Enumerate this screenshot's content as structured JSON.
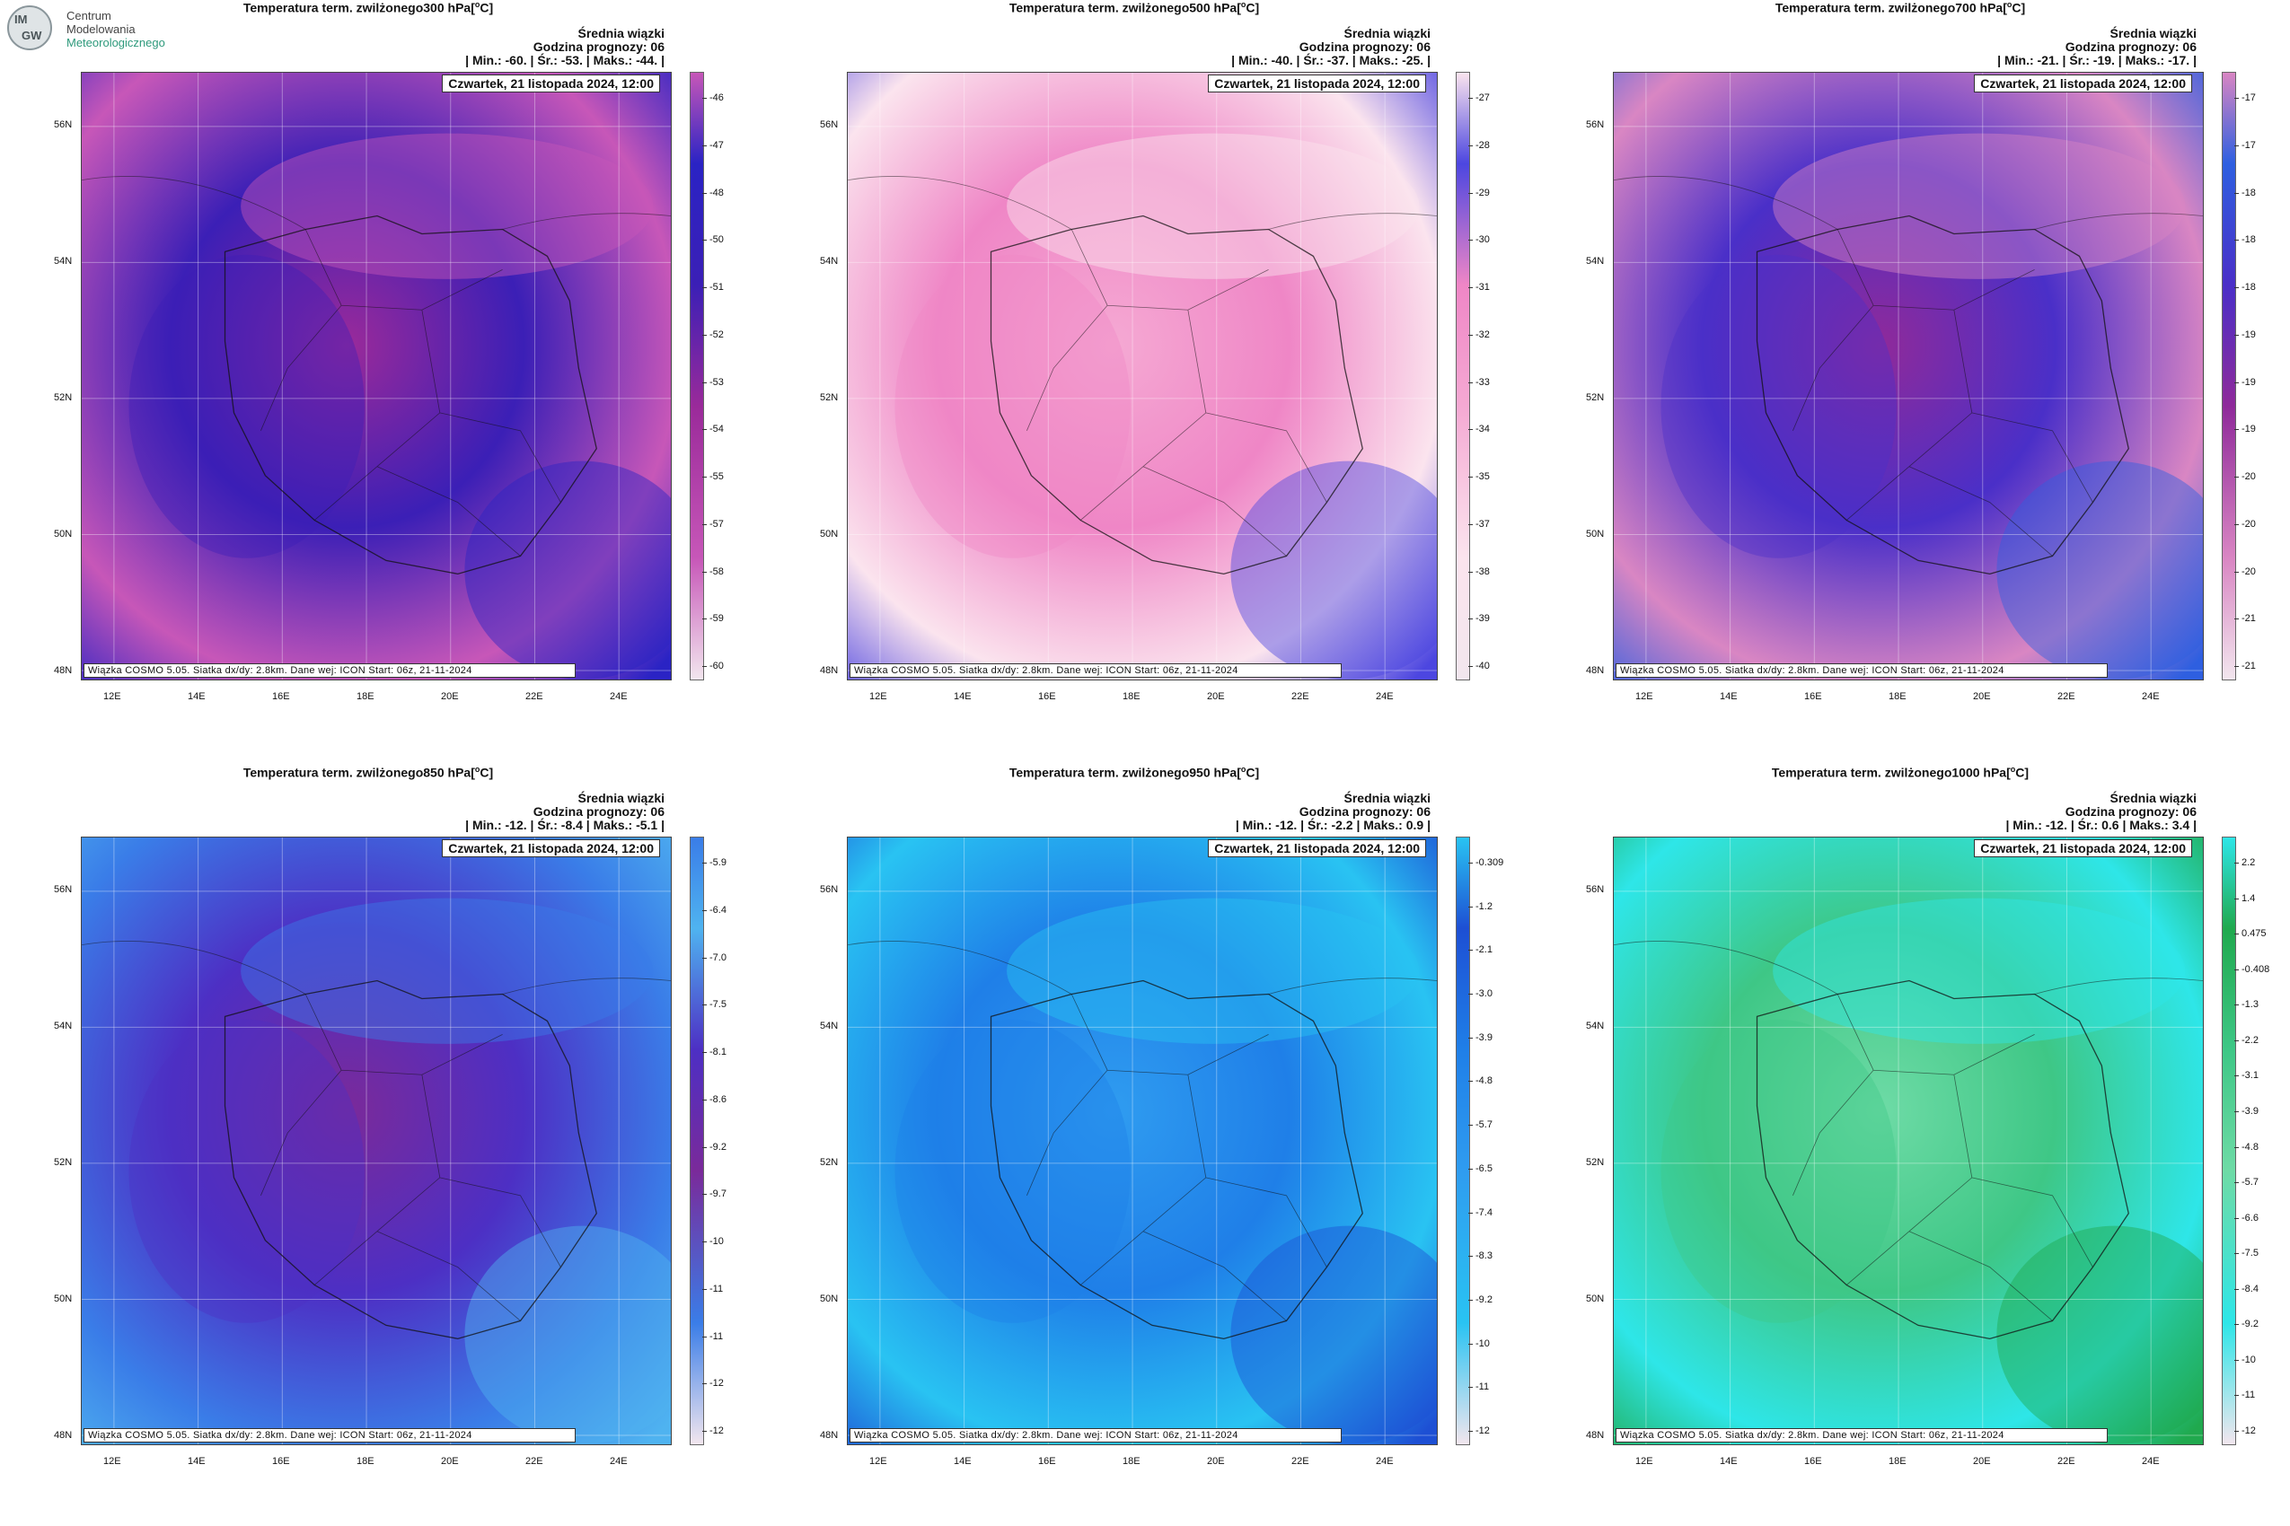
{
  "logo": {
    "line1": "Centrum",
    "line2": "Modelowania",
    "line3": "Meteorologicznego",
    "mark": "IMGW"
  },
  "common": {
    "info1": "Średnia wiązki",
    "info2": "Godzina prognozy: 06",
    "date": "Czwartek, 21 listopada 2024, 12:00",
    "footer": "Wiązka COSMO 5.05. Siatka dx/dy: 2.8km. Dane wej: ICON Start: 06z, 21-11-2024",
    "lat_labels": [
      "56N",
      "54N",
      "52N",
      "50N",
      "48N"
    ],
    "lon_labels": [
      "12E",
      "14E",
      "16E",
      "18E",
      "20E",
      "22E",
      "24E"
    ],
    "title_prefix": "Temperatura term. zwilżonego",
    "title_unit": "C"
  },
  "panels": [
    {
      "level": "300 hPa",
      "stats": "| Min.: -60. | Śr.: -53. | Maks.: -44. |",
      "cbar": [
        "-46",
        "-47",
        "-48",
        "-50",
        "-51",
        "-52",
        "-53",
        "-54",
        "-55",
        "-57",
        "-58",
        "-59",
        "-60"
      ],
      "colors": {
        "a": "#3b1fb6",
        "b": "#9a2a9a",
        "c": "#c757b8",
        "d": "#2a23c4"
      }
    },
    {
      "level": "500 hPa",
      "stats": "| Min.: -40. | Śr.: -37. | Maks.: -25. |",
      "cbar": [
        "-27",
        "-28",
        "-29",
        "-30",
        "-31",
        "-32",
        "-33",
        "-34",
        "-35",
        "-37",
        "-38",
        "-39",
        "-40"
      ],
      "colors": {
        "a": "#ef86c6",
        "b": "#f5a9d3",
        "c": "#fbe4ee",
        "d": "#4c46e0"
      }
    },
    {
      "level": "700 hPa",
      "stats": "| Min.: -21. | Śr.: -19. | Maks.: -17. |",
      "cbar": [
        "-17",
        "-17",
        "-18",
        "-18",
        "-18",
        "-19",
        "-19",
        "-19",
        "-20",
        "-20",
        "-20",
        "-21",
        "-21"
      ],
      "colors": {
        "a": "#4a2fc8",
        "b": "#8f2a9a",
        "c": "#d986c3",
        "d": "#2e5fe0"
      }
    },
    {
      "level": "850 hPa",
      "stats": "| Min.: -12. | Śr.: -8.4 | Maks.: -5.1 |",
      "cbar": [
        "-5.9",
        "-6.4",
        "-7.0",
        "-7.5",
        "-8.1",
        "-8.6",
        "-9.2",
        "-9.7",
        "-10",
        "-11",
        "-11",
        "-12",
        "-12"
      ],
      "colors": {
        "a": "#4d2fc4",
        "b": "#7a2a9a",
        "c": "#3a7de8",
        "d": "#4fb3f0"
      }
    },
    {
      "level": "950 hPa",
      "stats": "| Min.: -12. | Śr.: -2.2 | Maks.: 0.9 |",
      "cbar": [
        "-0.309",
        "-1.2",
        "-2.1",
        "-3.0",
        "-3.9",
        "-4.8",
        "-5.7",
        "-6.5",
        "-7.4",
        "-8.3",
        "-9.2",
        "-10",
        "-11",
        "-12"
      ],
      "colors": {
        "a": "#1f7fe8",
        "b": "#2f9cf0",
        "c": "#29c3f2",
        "d": "#1d4fd4"
      }
    },
    {
      "level": "1000 hPa",
      "stats": "| Min.: -12. | Śr.: 0.6 | Maks.: 3.4 |",
      "cbar": [
        "2.2",
        "1.4",
        "0.475",
        "-0.408",
        "-1.3",
        "-2.2",
        "-3.1",
        "-3.9",
        "-4.8",
        "-5.7",
        "-6.6",
        "-7.5",
        "-8.4",
        "-9.2",
        "-10",
        "-11",
        "-12"
      ],
      "colors": {
        "a": "#3ec786",
        "b": "#6edba6",
        "c": "#2ee6e8",
        "d": "#20a94e"
      }
    }
  ]
}
